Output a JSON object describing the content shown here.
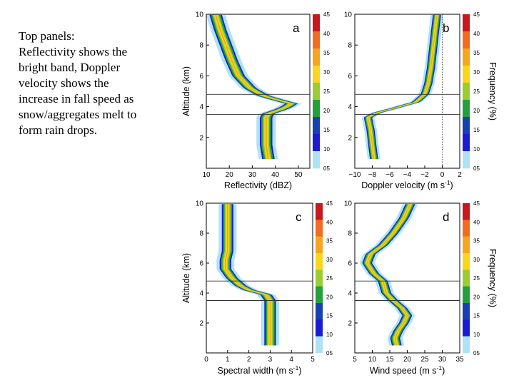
{
  "caption": {
    "lines": [
      "Top panels:",
      "Reflectivity shows the",
      "bright band, Doppler",
      "velocity shows the",
      "increase in fall speed as",
      "snow/aggregates melt to",
      "form rain drops."
    ]
  },
  "colorbar": {
    "title": "Frequency (%)",
    "ticks": [
      "45",
      "40",
      "35",
      "30",
      "25",
      "20",
      "15",
      "10",
      "05"
    ],
    "colors": [
      "#c8171d",
      "#f26b21",
      "#f7a51c",
      "#fad71c",
      "#9acd32",
      "#22a03c",
      "#1740b0",
      "#1b1bd6",
      "#aee3f5"
    ]
  },
  "chart_data": [
    {
      "id": "a",
      "type": "heatmap",
      "letter": "a",
      "xlabel": "Reflectivity (dBZ)",
      "ylabel": "Altitude (km)",
      "xlim": [
        10,
        55
      ],
      "ylim": [
        0,
        10
      ],
      "xticks": [
        10,
        20,
        30,
        40,
        50
      ],
      "yticks": [
        2,
        4,
        6,
        8,
        10
      ],
      "hlines": [
        4.8,
        3.5
      ],
      "profile": [
        [
          0.6,
          37
        ],
        [
          1.5,
          36
        ],
        [
          2.5,
          36
        ],
        [
          3.3,
          36
        ],
        [
          3.55,
          37
        ],
        [
          3.8,
          42
        ],
        [
          4.0,
          45
        ],
        [
          4.2,
          47
        ],
        [
          4.4,
          42
        ],
        [
          4.7,
          35
        ],
        [
          5.2,
          29
        ],
        [
          6.0,
          24
        ],
        [
          7.0,
          21
        ],
        [
          8.0,
          18.5
        ],
        [
          9.0,
          16
        ],
        [
          10.0,
          14
        ]
      ],
      "width": 3.5
    },
    {
      "id": "b",
      "type": "heatmap",
      "letter": "b",
      "xlabel": "Doppler velocity (m s-1)",
      "ylabel": "",
      "xlim": [
        -10,
        2
      ],
      "ylim": [
        0,
        10
      ],
      "xticks": [
        -10,
        -8,
        -6,
        -4,
        -2,
        0,
        2
      ],
      "yticks": [
        2,
        4,
        6,
        8,
        10
      ],
      "hlines": [
        4.8,
        3.5
      ],
      "vline": 0,
      "profile": [
        [
          0.6,
          -7.8
        ],
        [
          1.5,
          -8.0
        ],
        [
          2.5,
          -8.2
        ],
        [
          3.3,
          -8.5
        ],
        [
          3.6,
          -7.5
        ],
        [
          3.9,
          -5.5
        ],
        [
          4.3,
          -3.0
        ],
        [
          4.8,
          -2.0
        ],
        [
          5.5,
          -1.6
        ],
        [
          6.5,
          -1.3
        ],
        [
          7.5,
          -1.1
        ],
        [
          8.5,
          -0.9
        ],
        [
          10.0,
          -0.6
        ]
      ],
      "width": 0.6
    },
    {
      "id": "c",
      "type": "heatmap",
      "letter": "c",
      "xlabel": "Spectral width (m s-1)",
      "ylabel": "Altitude (km)",
      "xlim": [
        0,
        5
      ],
      "ylim": [
        0,
        10
      ],
      "xticks": [
        0,
        1,
        2,
        3,
        4,
        5
      ],
      "yticks": [
        2,
        4,
        6,
        8,
        10
      ],
      "hlines": [
        4.8,
        3.5
      ],
      "profile": [
        [
          0.5,
          3.0
        ],
        [
          1.5,
          3.0
        ],
        [
          2.5,
          3.0
        ],
        [
          3.5,
          3.0
        ],
        [
          3.9,
          2.8
        ],
        [
          4.2,
          2.0
        ],
        [
          4.5,
          1.6
        ],
        [
          5.0,
          1.2
        ],
        [
          5.6,
          0.9
        ],
        [
          6.2,
          0.9
        ],
        [
          6.8,
          1.0
        ],
        [
          7.5,
          1.0
        ],
        [
          8.5,
          1.0
        ],
        [
          9.5,
          1.0
        ],
        [
          10.0,
          1.0
        ]
      ],
      "width": 0.35
    },
    {
      "id": "d",
      "type": "heatmap",
      "letter": "d",
      "xlabel": "Wind speed (m s-1)",
      "ylabel": "",
      "xlim": [
        5,
        35
      ],
      "ylim": [
        0,
        10
      ],
      "xticks": [
        5,
        10,
        15,
        20,
        25,
        30,
        35
      ],
      "yticks": [
        2,
        4,
        6,
        8,
        10
      ],
      "hlines": [
        4.8,
        3.5
      ],
      "profile": [
        [
          0.5,
          17
        ],
        [
          1.0,
          16.5
        ],
        [
          1.5,
          17.5
        ],
        [
          2.0,
          19
        ],
        [
          2.5,
          20
        ],
        [
          3.0,
          18.5
        ],
        [
          3.5,
          16
        ],
        [
          4.0,
          14
        ],
        [
          4.8,
          13
        ],
        [
          5.3,
          10.5
        ],
        [
          6.0,
          8.5
        ],
        [
          6.6,
          9.5
        ],
        [
          7.2,
          13
        ],
        [
          8.0,
          16
        ],
        [
          9.0,
          19
        ],
        [
          10.0,
          21
        ]
      ],
      "width": 1.8
    }
  ]
}
